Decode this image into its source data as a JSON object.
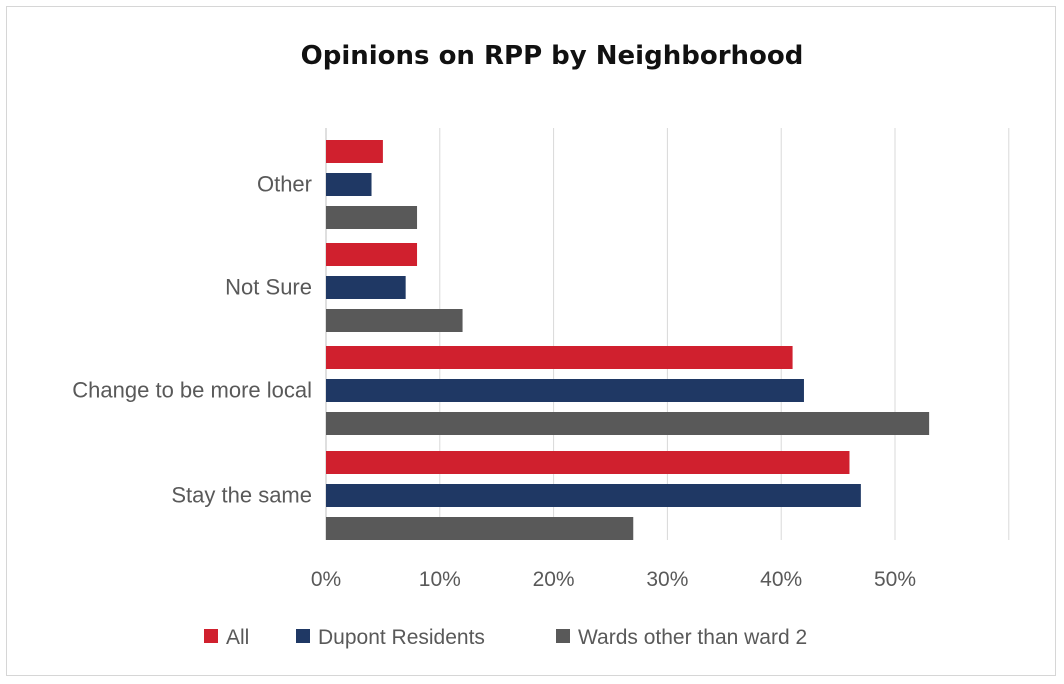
{
  "chart_data": {
    "type": "bar",
    "orientation": "horizontal",
    "title": "Opinions on RPP by Neighborhood",
    "categories": [
      "Other",
      "Not Sure",
      "Change to be more local",
      "Stay the same"
    ],
    "series": [
      {
        "name": "All",
        "color": "#d0202e",
        "values": [
          0.05,
          0.08,
          0.41,
          0.46
        ]
      },
      {
        "name": "Dupont Residents",
        "color": "#1f3864",
        "values": [
          0.04,
          0.07,
          0.42,
          0.47
        ]
      },
      {
        "name": "Wards other than ward 2",
        "color": "#595959",
        "values": [
          0.08,
          0.12,
          0.53,
          0.27
        ]
      }
    ],
    "x_ticks": [
      "0%",
      "10%",
      "20%",
      "30%",
      "40%",
      "50%"
    ],
    "xlim": [
      0,
      0.6
    ],
    "grid": true,
    "legend_position": "bottom"
  }
}
